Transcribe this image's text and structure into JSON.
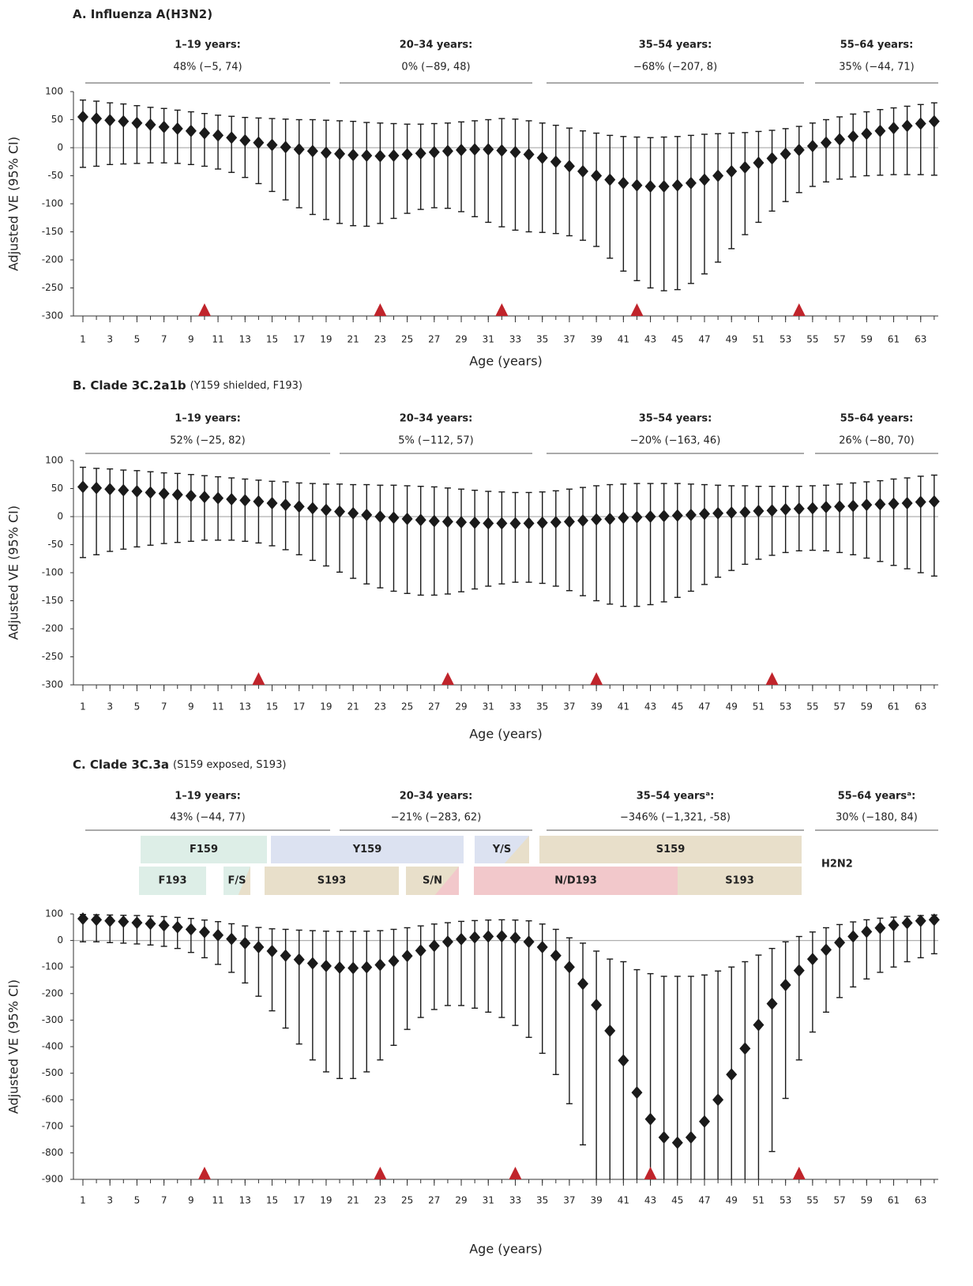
{
  "chart_data": [
    {
      "type": "errorbar",
      "title": "A. Influenza A(H3N2)",
      "groups": [
        {
          "label": "1–19 years:",
          "estimate": "48% (−5, 74)"
        },
        {
          "label": "20–34 years:",
          "estimate": "0% (−89, 48)"
        },
        {
          "label": "35–54 years:",
          "estimate": "−68% (−207, 8)"
        },
        {
          "label": "55–64 years:",
          "estimate": "35% (−44, 71)"
        }
      ],
      "ylabel": "Adjusted VE (95% CI)",
      "xlabel": "Age (years)",
      "x": [
        1,
        2,
        3,
        4,
        5,
        6,
        7,
        8,
        9,
        10,
        11,
        12,
        13,
        14,
        15,
        16,
        17,
        18,
        19,
        20,
        21,
        22,
        23,
        24,
        25,
        26,
        27,
        28,
        29,
        30,
        31,
        32,
        33,
        34,
        35,
        36,
        37,
        38,
        39,
        40,
        41,
        42,
        43,
        44,
        45,
        46,
        47,
        48,
        49,
        50,
        51,
        52,
        53,
        54,
        55,
        56,
        57,
        58,
        59,
        60,
        61,
        62,
        63,
        64
      ],
      "values": [
        55,
        52,
        49,
        47,
        44,
        41,
        37,
        34,
        30,
        26,
        22,
        18,
        13,
        9,
        5,
        1,
        -3,
        -6,
        -9,
        -11,
        -13,
        -14,
        -15,
        -14,
        -12,
        -10,
        -8,
        -6,
        -4,
        -3,
        -3,
        -5,
        -8,
        -12,
        -18,
        -25,
        -33,
        -42,
        -50,
        -57,
        -63,
        -67,
        -69,
        -69,
        -67,
        -63,
        -57,
        -50,
        -42,
        -35,
        -27,
        -19,
        -11,
        -4,
        3,
        9,
        15,
        20,
        25,
        30,
        35,
        39,
        43,
        47
      ],
      "ci_lower": [
        -35,
        -33,
        -30,
        -29,
        -28,
        -27,
        -27,
        -28,
        -30,
        -33,
        -38,
        -44,
        -53,
        -64,
        -78,
        -93,
        -107,
        -119,
        -128,
        -135,
        -139,
        -140,
        -135,
        -126,
        -117,
        -110,
        -107,
        -108,
        -114,
        -123,
        -133,
        -141,
        -147,
        -150,
        -151,
        -153,
        -157,
        -165,
        -176,
        -197,
        -220,
        -237,
        -250,
        -255,
        -253,
        -242,
        -225,
        -204,
        -180,
        -155,
        -133,
        -113,
        -96,
        -80,
        -69,
        -61,
        -56,
        -52,
        -50,
        -49,
        -48,
        -48,
        -48,
        -49
      ],
      "ci_upper": [
        85,
        83,
        80,
        78,
        75,
        72,
        70,
        67,
        64,
        61,
        58,
        56,
        54,
        53,
        52,
        51,
        50,
        50,
        49,
        48,
        47,
        45,
        44,
        43,
        42,
        42,
        43,
        44,
        46,
        48,
        50,
        52,
        51,
        48,
        44,
        40,
        35,
        30,
        26,
        22,
        20,
        19,
        18,
        19,
        20,
        22,
        24,
        25,
        26,
        27,
        29,
        31,
        34,
        38,
        44,
        50,
        55,
        60,
        64,
        68,
        71,
        74,
        77,
        80
      ],
      "color": "#1a1a1a",
      "zero_line_color": "#b0b0b0",
      "markers": [
        10,
        23,
        32,
        42,
        54
      ],
      "marker_color": "#c0242b",
      "xlim": [
        0.3,
        64.3
      ],
      "xticks": [
        1,
        3,
        5,
        7,
        9,
        11,
        13,
        15,
        17,
        19,
        21,
        23,
        25,
        27,
        29,
        31,
        33,
        35,
        37,
        39,
        41,
        43,
        45,
        47,
        49,
        51,
        53,
        55,
        57,
        59,
        61,
        63
      ],
      "ylim": [
        -300,
        100
      ],
      "yticks": [
        -300,
        -250,
        -200,
        -150,
        -100,
        -50,
        0,
        50,
        100
      ]
    },
    {
      "type": "errorbar",
      "title": "B. Clade 3C.2a1b",
      "subtitle": "(Y159 shielded, F193)",
      "groups": [
        {
          "label": "1–19 years:",
          "estimate": "52% (−25, 82)"
        },
        {
          "label": "20–34 years:",
          "estimate": "5% (−112, 57)"
        },
        {
          "label": "35–54 years:",
          "estimate": "−20% (−163, 46)"
        },
        {
          "label": "55–64 years:",
          "estimate": "26% (−80, 70)"
        }
      ],
      "ylabel": "Adjusted VE (95% CI)",
      "xlabel": "Age (years)",
      "x": [
        1,
        2,
        3,
        4,
        5,
        6,
        7,
        8,
        9,
        10,
        11,
        12,
        13,
        14,
        15,
        16,
        17,
        18,
        19,
        20,
        21,
        22,
        23,
        24,
        25,
        26,
        27,
        28,
        29,
        30,
        31,
        32,
        33,
        34,
        35,
        36,
        37,
        38,
        39,
        40,
        41,
        42,
        43,
        44,
        45,
        46,
        47,
        48,
        49,
        50,
        51,
        52,
        53,
        54,
        55,
        56,
        57,
        58,
        59,
        60,
        61,
        62,
        63,
        64
      ],
      "values": [
        53,
        51,
        49,
        47,
        45,
        43,
        41,
        39,
        37,
        35,
        33,
        31,
        29,
        27,
        24,
        21,
        18,
        15,
        12,
        9,
        6,
        3,
        0,
        -2,
        -4,
        -6,
        -8,
        -9,
        -10,
        -11,
        -12,
        -12,
        -12,
        -12,
        -11,
        -10,
        -9,
        -7,
        -5,
        -4,
        -2,
        -1,
        0,
        1,
        2,
        3,
        5,
        6,
        7,
        8,
        10,
        11,
        13,
        14,
        15,
        17,
        18,
        19,
        21,
        22,
        23,
        24,
        26,
        27
      ],
      "ci_lower": [
        -73,
        -68,
        -62,
        -58,
        -54,
        -51,
        -48,
        -46,
        -44,
        -42,
        -42,
        -42,
        -44,
        -47,
        -52,
        -59,
        -68,
        -78,
        -88,
        -99,
        -110,
        -120,
        -127,
        -133,
        -137,
        -140,
        -140,
        -138,
        -134,
        -129,
        -124,
        -120,
        -117,
        -117,
        -119,
        -124,
        -132,
        -141,
        -150,
        -156,
        -160,
        -160,
        -157,
        -152,
        -144,
        -133,
        -121,
        -108,
        -96,
        -85,
        -76,
        -69,
        -64,
        -61,
        -60,
        -61,
        -64,
        -68,
        -74,
        -80,
        -87,
        -93,
        -100,
        -106
      ],
      "ci_upper": [
        88,
        86,
        85,
        83,
        82,
        80,
        78,
        77,
        75,
        73,
        71,
        69,
        67,
        65,
        63,
        62,
        60,
        59,
        58,
        58,
        57,
        57,
        56,
        56,
        55,
        54,
        53,
        51,
        49,
        47,
        45,
        44,
        43,
        43,
        44,
        46,
        49,
        52,
        55,
        57,
        58,
        59,
        59,
        59,
        59,
        58,
        57,
        56,
        55,
        55,
        54,
        54,
        54,
        54,
        55,
        56,
        58,
        60,
        62,
        64,
        67,
        69,
        72,
        74
      ],
      "color": "#1a1a1a",
      "zero_line_color": "#b0b0b0",
      "markers": [
        14,
        28,
        39,
        52
      ],
      "marker_color": "#c0242b",
      "xlim": [
        0.3,
        64.3
      ],
      "xticks": [
        1,
        3,
        5,
        7,
        9,
        11,
        13,
        15,
        17,
        19,
        21,
        23,
        25,
        27,
        29,
        31,
        33,
        35,
        37,
        39,
        41,
        43,
        45,
        47,
        49,
        51,
        53,
        55,
        57,
        59,
        61,
        63
      ],
      "ylim": [
        -300,
        100
      ],
      "yticks": [
        -300,
        -250,
        -200,
        -150,
        -100,
        -50,
        0,
        50,
        100
      ]
    },
    {
      "type": "errorbar",
      "title": "C. Clade 3C.3a",
      "subtitle": "(S159 exposed, S193)",
      "groups": [
        {
          "label": "1–19 years:",
          "estimate": "43% (−44, 77)"
        },
        {
          "label": "20–34 years:",
          "estimate": "−21% (−283, 62)"
        },
        {
          "label": "35–54 yearsᵃ:",
          "estimate": "−346% (−1,321, -58)"
        },
        {
          "label": "55–64 yearsᵃ:",
          "estimate": "30% (−180, 84)"
        }
      ],
      "clades": {
        "row1": [
          {
            "label": "F159",
            "colors": [
              "#ddeee7"
            ]
          },
          {
            "label": "Y159",
            "colors": [
              "#dce2f1"
            ]
          },
          {
            "label": "Y/S",
            "colors": [
              "#dce2f1",
              "#e8dfca"
            ]
          },
          {
            "label": "S159",
            "colors": [
              "#e8dfca"
            ]
          }
        ],
        "row2": [
          {
            "label": "F193",
            "colors": [
              "#ddeee7"
            ]
          },
          {
            "label": "F/S",
            "colors": [
              "#ddeee7",
              "#e8dfca"
            ]
          },
          {
            "label": "S193",
            "colors": [
              "#e8dfca"
            ]
          },
          {
            "label": "S/N",
            "colors": [
              "#e8dfca",
              "#f2c8cb"
            ]
          },
          {
            "label": "N/D193",
            "colors": [
              "#f2c8cb"
            ]
          },
          {
            "label": "S193",
            "colors": [
              "#e8dfca"
            ]
          }
        ],
        "other": "H2N2"
      },
      "ylabel": "Adjusted VE (95% CI)",
      "xlabel": "Age (years)",
      "x": [
        1,
        2,
        3,
        4,
        5,
        6,
        7,
        8,
        9,
        10,
        11,
        12,
        13,
        14,
        15,
        16,
        17,
        18,
        19,
        20,
        21,
        22,
        23,
        24,
        25,
        26,
        27,
        28,
        29,
        30,
        31,
        32,
        33,
        34,
        35,
        36,
        37,
        38,
        39,
        40,
        41,
        42,
        43,
        44,
        45,
        46,
        47,
        48,
        49,
        50,
        51,
        52,
        53,
        54,
        55,
        56,
        57,
        58,
        59,
        60,
        61,
        62,
        63,
        64
      ],
      "values": [
        82,
        78,
        74,
        71,
        67,
        63,
        57,
        50,
        42,
        32,
        20,
        6,
        -10,
        -25,
        -40,
        -57,
        -72,
        -86,
        -96,
        -102,
        -104,
        -101,
        -92,
        -77,
        -58,
        -38,
        -20,
        -5,
        5,
        12,
        15,
        16,
        10,
        -5,
        -25,
        -57,
        -100,
        -163,
        -243,
        -340,
        -452,
        -573,
        -673,
        -742,
        -762,
        -742,
        -682,
        -600,
        -505,
        -407,
        -318,
        -238,
        -168,
        -113,
        -70,
        -35,
        -8,
        15,
        33,
        47,
        58,
        66,
        74,
        78
      ],
      "ci_lower": [
        -5,
        -5,
        -8,
        -10,
        -13,
        -17,
        -22,
        -30,
        -45,
        -65,
        -90,
        -120,
        -160,
        -210,
        -265,
        -330,
        -390,
        -450,
        -495,
        -520,
        -520,
        -495,
        -450,
        -395,
        -335,
        -290,
        -260,
        -245,
        -245,
        -255,
        -270,
        -290,
        -320,
        -365,
        -425,
        -505,
        -615,
        -770,
        -1000,
        -1000,
        -1000,
        -1000,
        -1000,
        -1000,
        -1000,
        -1000,
        -1000,
        -1000,
        -1000,
        -1000,
        -1000,
        -795,
        -595,
        -450,
        -345,
        -270,
        -215,
        -175,
        -145,
        -120,
        -100,
        -80,
        -65,
        -50
      ],
      "ci_upper": [
        98,
        97,
        96,
        95,
        94,
        92,
        90,
        87,
        83,
        77,
        71,
        63,
        55,
        49,
        44,
        42,
        39,
        37,
        35,
        34,
        34,
        35,
        37,
        42,
        48,
        55,
        62,
        67,
        72,
        75,
        77,
        78,
        77,
        74,
        62,
        42,
        10,
        -10,
        -40,
        -70,
        -80,
        -110,
        -125,
        -135,
        -135,
        -135,
        -130,
        -115,
        -100,
        -80,
        -55,
        -30,
        -5,
        15,
        32,
        48,
        60,
        70,
        78,
        84,
        88,
        91,
        94,
        96
      ],
      "color": "#1a1a1a",
      "zero_line_color": "#b0b0b0",
      "markers": [
        10,
        23,
        33,
        43,
        54
      ],
      "marker_color": "#c0242b",
      "xlim": [
        0.3,
        64.3
      ],
      "xticks": [
        1,
        3,
        5,
        7,
        9,
        11,
        13,
        15,
        17,
        19,
        21,
        23,
        25,
        27,
        29,
        31,
        33,
        35,
        37,
        39,
        41,
        43,
        45,
        47,
        49,
        51,
        53,
        55,
        57,
        59,
        61,
        63
      ],
      "ylim": [
        -900,
        100
      ],
      "yticks": [
        -900,
        -800,
        -700,
        -600,
        -500,
        -400,
        -300,
        -200,
        -100,
        0,
        100
      ]
    }
  ]
}
